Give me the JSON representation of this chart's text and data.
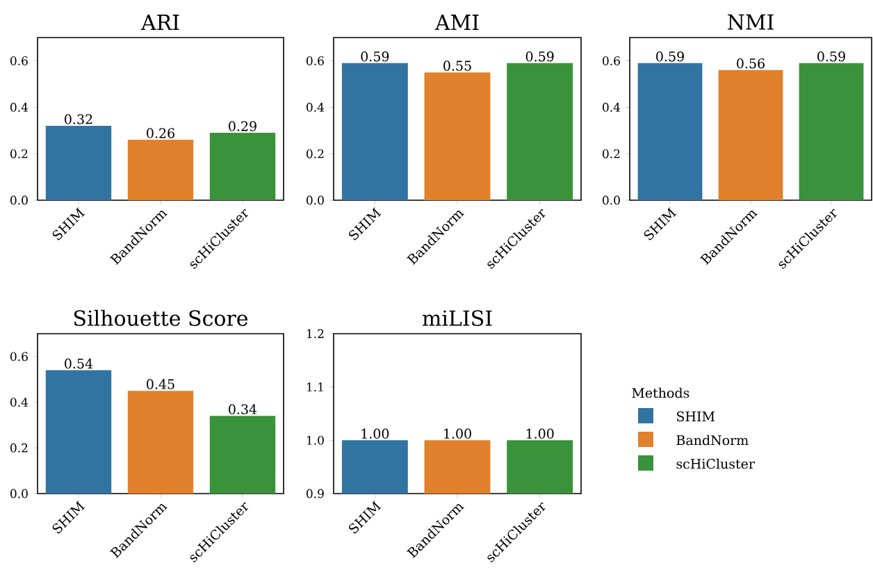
{
  "chart_data": [
    {
      "type": "bar",
      "title": "ARI",
      "categories": [
        "SHIM",
        "BandNorm",
        "scHiCluster"
      ],
      "values": [
        0.32,
        0.26,
        0.29
      ],
      "value_labels": [
        "0.32",
        "0.26",
        "0.29"
      ],
      "colors": [
        "#3274a1",
        "#e1812c",
        "#3a923a"
      ],
      "ylim": [
        0,
        0.7
      ],
      "yticks": [
        {
          "value": 0,
          "label": "0.0"
        },
        {
          "value": 0.2,
          "label": "0.2"
        },
        {
          "value": 0.4,
          "label": "0.4"
        },
        {
          "value": 0.6,
          "label": "0.6"
        }
      ]
    },
    {
      "type": "bar",
      "title": "AMI",
      "categories": [
        "SHIM",
        "BandNorm",
        "scHiCluster"
      ],
      "values": [
        0.59,
        0.55,
        0.59
      ],
      "value_labels": [
        "0.59",
        "0.55",
        "0.59"
      ],
      "colors": [
        "#3274a1",
        "#e1812c",
        "#3a923a"
      ],
      "ylim": [
        0,
        0.7
      ],
      "yticks": [
        {
          "value": 0,
          "label": "0.0"
        },
        {
          "value": 0.2,
          "label": "0.2"
        },
        {
          "value": 0.4,
          "label": "0.4"
        },
        {
          "value": 0.6,
          "label": "0.6"
        }
      ]
    },
    {
      "type": "bar",
      "title": "NMI",
      "categories": [
        "SHIM",
        "BandNorm",
        "scHiCluster"
      ],
      "values": [
        0.59,
        0.56,
        0.59
      ],
      "value_labels": [
        "0.59",
        "0.56",
        "0.59"
      ],
      "colors": [
        "#3274a1",
        "#e1812c",
        "#3a923a"
      ],
      "ylim": [
        0,
        0.7
      ],
      "yticks": [
        {
          "value": 0,
          "label": "0.0"
        },
        {
          "value": 0.2,
          "label": "0.2"
        },
        {
          "value": 0.4,
          "label": "0.4"
        },
        {
          "value": 0.6,
          "label": "0.6"
        }
      ]
    },
    {
      "type": "bar",
      "title": "Silhouette Score",
      "categories": [
        "SHIM",
        "BandNorm",
        "scHiCluster"
      ],
      "values": [
        0.54,
        0.45,
        0.34
      ],
      "value_labels": [
        "0.54",
        "0.45",
        "0.34"
      ],
      "colors": [
        "#3274a1",
        "#e1812c",
        "#3a923a"
      ],
      "ylim": [
        0,
        0.7
      ],
      "yticks": [
        {
          "value": 0,
          "label": "0.0"
        },
        {
          "value": 0.2,
          "label": "0.2"
        },
        {
          "value": 0.4,
          "label": "0.4"
        },
        {
          "value": 0.6,
          "label": "0.6"
        }
      ]
    },
    {
      "type": "bar",
      "title": "miLISI",
      "categories": [
        "SHIM",
        "BandNorm",
        "scHiCluster"
      ],
      "series": [
        {
          "name": "SHIM",
          "color": "#3274a1",
          "values": [
            1.0,
            null,
            null
          ],
          "value_labels": [
            "1.00",
            null,
            null
          ]
        },
        {
          "name": "BandNorm",
          "color": "#e1812c",
          "values": [
            null,
            1.0,
            null
          ],
          "value_labels": [
            null,
            "1.00",
            null
          ]
        },
        {
          "name": "scHiCluster",
          "color": "#3a923a",
          "values": [
            null,
            null,
            1.0
          ],
          "value_labels": [
            null,
            null,
            "1.00"
          ]
        }
      ],
      "ylim": [
        0.9,
        1.2
      ],
      "yticks": [
        {
          "value": 0.9,
          "label": "0.9"
        },
        {
          "value": 1.0,
          "label": "1.0"
        },
        {
          "value": 1.1,
          "label": "1.1"
        },
        {
          "value": 1.2,
          "label": "1.2"
        }
      ],
      "legend": "right",
      "legend_title": "Methods"
    }
  ]
}
